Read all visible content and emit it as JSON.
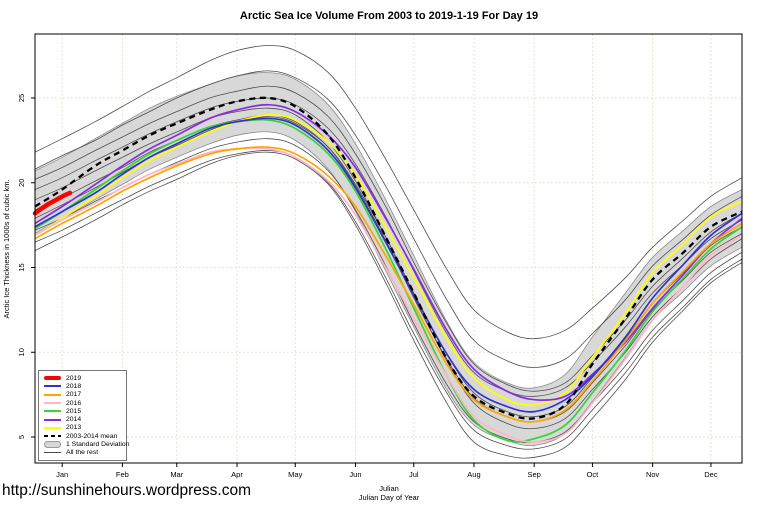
{
  "page": {
    "url_text": "http://sunshinehours.wordpress.com"
  },
  "chart_data": {
    "type": "line",
    "title": "Arctic Sea Ice Volume From 2003 to 2019-1-19  For Day 19",
    "ylabel": "Arctic Ice Thickness in 1000s of cubic km.",
    "xlabel_line1": "Julian",
    "xlabel_line2": "Julian Day of Year",
    "x_unit": "julian_day_of_year",
    "xlim": [
      1,
      365
    ],
    "ylim": [
      3.5,
      28.8
    ],
    "grid": "dotted",
    "y_ticks": [
      5,
      10,
      15,
      20,
      25
    ],
    "month_ticks": [
      {
        "label": "Jan",
        "day": 15
      },
      {
        "label": "Feb",
        "day": 46
      },
      {
        "label": "Mar",
        "day": 74
      },
      {
        "label": "Apr",
        "day": 105
      },
      {
        "label": "May",
        "day": 135
      },
      {
        "label": "Jun",
        "day": 166
      },
      {
        "label": "Jul",
        "day": 196
      },
      {
        "label": "Aug",
        "day": 227
      },
      {
        "label": "Sep",
        "day": 258
      },
      {
        "label": "Oct",
        "day": 288
      },
      {
        "label": "Nov",
        "day": 319
      },
      {
        "label": "Dec",
        "day": 349
      }
    ],
    "x_days": [
      1,
      15,
      32,
      46,
      60,
      74,
      91,
      105,
      121,
      135,
      152,
      166,
      182,
      196,
      213,
      227,
      244,
      258,
      274,
      288,
      305,
      319,
      335,
      349,
      365
    ],
    "band": {
      "label": "1 Standard Deviation",
      "fill_color": "#d8d8d8",
      "edge_color": "#8c8c8c",
      "top": [
        20.7,
        21.5,
        22.6,
        23.5,
        24.4,
        25.1,
        25.8,
        26.3,
        26.5,
        26.1,
        24.6,
        22.3,
        18.9,
        15.7,
        11.8,
        9.4,
        8.2,
        7.9,
        8.7,
        10.9,
        13.5,
        15.6,
        17.2,
        18.6,
        19.6
      ],
      "bottom": [
        17.0,
        17.9,
        19.0,
        19.9,
        20.8,
        21.5,
        22.3,
        22.8,
        23.0,
        22.5,
        20.8,
        18.3,
        14.7,
        11.5,
        7.8,
        5.7,
        4.8,
        4.5,
        5.2,
        7.1,
        9.7,
        11.9,
        13.6,
        15.1,
        16.2
      ]
    },
    "mean": {
      "label": "2003-2014 mean",
      "color": "#000000",
      "dashed": true,
      "values": [
        18.6,
        19.6,
        21.0,
        21.9,
        22.8,
        23.5,
        24.3,
        24.8,
        25.0,
        24.5,
        22.8,
        20.3,
        16.7,
        13.5,
        9.6,
        7.4,
        6.4,
        6.1,
        6.9,
        9.3,
        12.0,
        14.3,
        15.9,
        17.4,
        18.3
      ]
    },
    "year_2019": {
      "label": "2019",
      "color": "#ff0000",
      "days": [
        1,
        4,
        8,
        12,
        16,
        19
      ],
      "values": [
        18.2,
        18.45,
        18.75,
        19.0,
        19.25,
        19.4
      ]
    },
    "years": [
      {
        "label": "2013",
        "color": "#ffff00",
        "values": [
          16.9,
          17.9,
          19.2,
          20.3,
          21.3,
          22.1,
          23.0,
          23.6,
          24.0,
          23.7,
          22.4,
          20.5,
          17.3,
          14.4,
          10.8,
          8.5,
          7.2,
          6.9,
          7.6,
          9.7,
          12.3,
          14.7,
          16.4,
          18.0,
          18.9
        ]
      },
      {
        "label": "2014",
        "color": "#8a2be2",
        "values": [
          17.6,
          18.6,
          19.9,
          21.0,
          22.0,
          22.8,
          23.8,
          24.3,
          24.6,
          24.2,
          22.8,
          20.9,
          17.8,
          14.9,
          11.3,
          9.0,
          7.7,
          7.2,
          7.4,
          8.7,
          10.6,
          12.6,
          14.6,
          16.4,
          17.9
        ]
      },
      {
        "label": "2015",
        "color": "#33d633",
        "values": [
          17.3,
          18.3,
          19.6,
          20.7,
          21.7,
          22.5,
          23.3,
          23.6,
          23.7,
          23.2,
          21.7,
          19.5,
          16.0,
          12.6,
          8.6,
          6.0,
          4.8,
          4.9,
          5.7,
          7.6,
          10.1,
          12.4,
          14.4,
          16.1,
          17.4
        ]
      },
      {
        "label": "2016",
        "color": "#ffb5c5",
        "values": [
          16.9,
          17.8,
          18.8,
          19.7,
          20.5,
          21.1,
          21.8,
          22.0,
          22.0,
          21.5,
          20.1,
          18.1,
          14.9,
          12.0,
          8.6,
          6.2,
          5.1,
          4.7,
          5.2,
          7.0,
          9.6,
          11.9,
          13.9,
          15.7,
          16.9
        ]
      },
      {
        "label": "2017",
        "color": "#ffa500",
        "values": [
          16.7,
          17.6,
          18.6,
          19.5,
          20.3,
          21.0,
          21.7,
          22.0,
          22.1,
          21.7,
          20.4,
          18.6,
          15.6,
          12.8,
          9.3,
          7.2,
          6.2,
          5.9,
          6.6,
          8.3,
          10.7,
          12.9,
          14.8,
          16.4,
          17.6
        ]
      },
      {
        "label": "2018",
        "color": "#3333cc",
        "values": [
          17.4,
          18.3,
          19.4,
          20.5,
          21.5,
          22.3,
          23.2,
          23.6,
          23.8,
          23.4,
          21.9,
          19.7,
          16.4,
          13.4,
          9.9,
          7.8,
          6.8,
          6.5,
          7.2,
          8.6,
          10.9,
          13.2,
          15.2,
          16.9,
          18.2
        ]
      }
    ],
    "other_years": {
      "label": "All the rest",
      "color": "#4d4d4d",
      "series": [
        [
          21.8,
          22.6,
          23.6,
          24.5,
          25.4,
          26.2,
          27.2,
          27.8,
          28.1,
          27.8,
          26.5,
          24.4,
          21.3,
          18.4,
          14.9,
          12.5,
          11.2,
          10.8,
          11.3,
          12.6,
          14.4,
          16.2,
          17.8,
          19.2,
          20.3
        ],
        [
          20.8,
          21.6,
          22.5,
          23.4,
          24.2,
          25.0,
          25.8,
          26.3,
          26.6,
          26.2,
          24.9,
          22.8,
          19.7,
          16.7,
          13.1,
          10.7,
          9.5,
          9.1,
          9.6,
          11.1,
          13.1,
          15.1,
          16.7,
          18.1,
          19.2
        ],
        [
          20.2,
          20.9,
          21.9,
          22.7,
          23.5,
          24.2,
          25.0,
          25.4,
          25.7,
          25.3,
          23.9,
          21.7,
          18.5,
          15.3,
          11.7,
          9.3,
          8.1,
          7.7,
          8.2,
          9.8,
          11.9,
          13.9,
          15.6,
          17.1,
          18.2
        ],
        [
          19.6,
          20.3,
          21.3,
          22.1,
          22.9,
          23.6,
          24.4,
          24.8,
          25.0,
          24.6,
          23.2,
          21.1,
          17.9,
          14.8,
          11.1,
          8.8,
          7.7,
          7.4,
          7.9,
          9.4,
          11.5,
          13.5,
          15.2,
          16.7,
          17.8
        ],
        [
          19.0,
          19.7,
          20.7,
          21.5,
          22.3,
          23.0,
          23.8,
          24.2,
          24.4,
          24.0,
          22.4,
          20.1,
          16.7,
          13.3,
          9.5,
          7.0,
          5.8,
          5.5,
          6.1,
          7.8,
          10.0,
          12.1,
          13.9,
          15.5,
          16.7
        ],
        [
          17.9,
          18.7,
          19.7,
          20.6,
          21.5,
          22.2,
          23.1,
          23.6,
          23.9,
          23.5,
          22.1,
          19.9,
          16.7,
          13.5,
          9.9,
          7.6,
          6.5,
          6.2,
          6.8,
          8.5,
          10.8,
          12.9,
          14.7,
          16.3,
          17.4
        ],
        [
          18.4,
          19.1,
          20.1,
          20.9,
          21.8,
          22.5,
          23.3,
          23.7,
          24.0,
          23.6,
          22.1,
          19.8,
          16.5,
          13.2,
          9.6,
          7.3,
          6.2,
          5.9,
          6.5,
          8.2,
          10.4,
          12.5,
          14.3,
          15.9,
          17.0
        ],
        [
          17.2,
          17.9,
          18.9,
          19.7,
          20.5,
          21.2,
          22.0,
          22.4,
          22.6,
          22.2,
          20.7,
          18.4,
          15.0,
          11.7,
          8.1,
          5.9,
          4.9,
          4.7,
          5.3,
          7.0,
          9.2,
          11.3,
          13.1,
          14.7,
          15.9
        ],
        [
          16.5,
          17.2,
          18.2,
          19.0,
          19.8,
          20.5,
          21.3,
          21.7,
          21.9,
          21.5,
          20.0,
          17.7,
          14.3,
          11.1,
          7.6,
          5.4,
          4.5,
          4.3,
          4.9,
          6.6,
          8.8,
          10.9,
          12.7,
          14.3,
          15.5
        ],
        [
          16.0,
          16.8,
          17.8,
          18.7,
          19.5,
          20.2,
          21.1,
          21.6,
          21.8,
          21.4,
          19.9,
          17.5,
          14.0,
          10.7,
          7.0,
          4.7,
          3.9,
          3.8,
          4.4,
          6.1,
          8.4,
          10.6,
          12.5,
          14.1,
          15.3
        ]
      ]
    }
  },
  "legend": {
    "items": [
      {
        "label": "2019",
        "color": "#ff0000",
        "style": "thick"
      },
      {
        "label": "2018",
        "color": "#3333cc",
        "style": "line"
      },
      {
        "label": "2017",
        "color": "#ffa500",
        "style": "line"
      },
      {
        "label": "2016",
        "color": "#ffb5c5",
        "style": "line"
      },
      {
        "label": "2015",
        "color": "#33d633",
        "style": "line"
      },
      {
        "label": "2014",
        "color": "#8a2be2",
        "style": "line"
      },
      {
        "label": "2013",
        "color": "#ffff00",
        "style": "line"
      },
      {
        "label": "2003-2014 mean",
        "color": "#000000",
        "style": "dashed"
      },
      {
        "label": "1 Standard Deviation",
        "color": "#d8d8d8",
        "style": "band"
      },
      {
        "label": "All the rest",
        "color": "#4d4d4d",
        "style": "thin"
      }
    ]
  }
}
